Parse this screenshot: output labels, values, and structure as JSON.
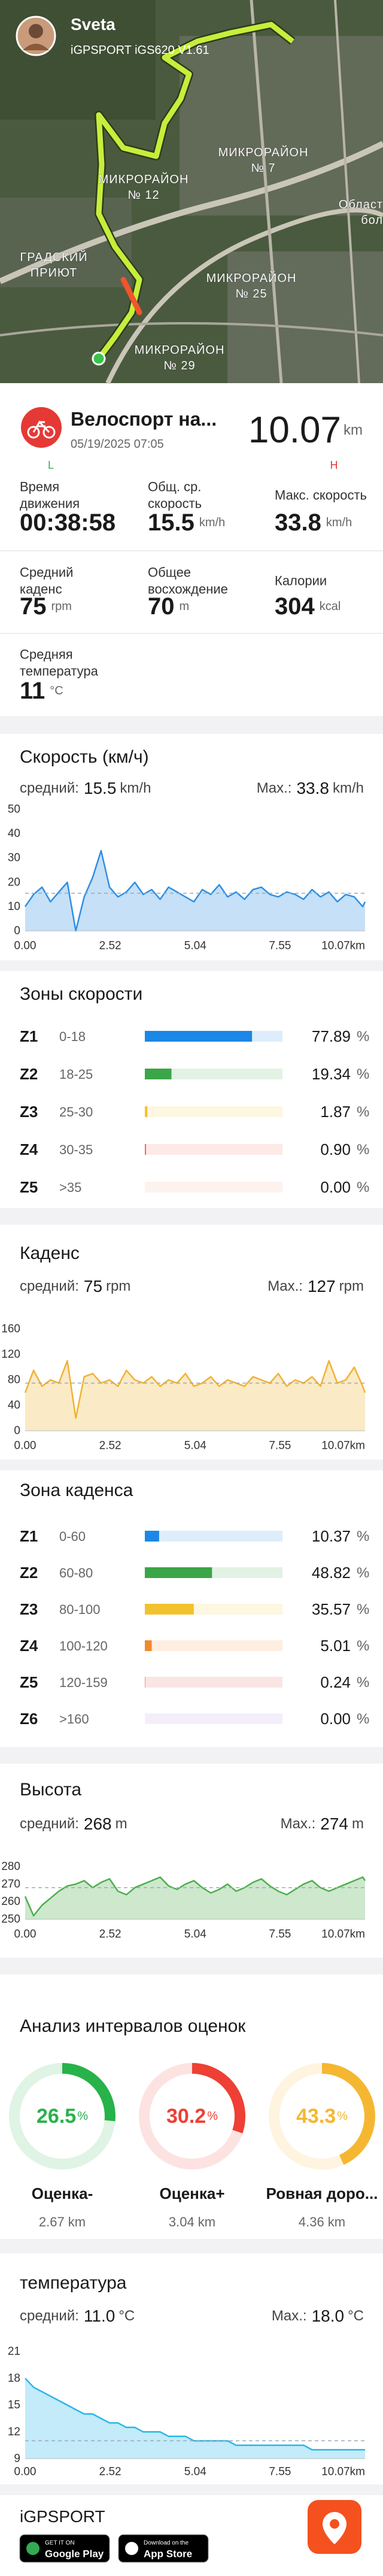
{
  "map": {
    "user": "Sveta",
    "device": "iGPSPORT iGS620 V1.61",
    "labels": [
      [
        "МИКРОРАЙОН",
        "№ 12"
      ],
      [
        "МИКРОРАЙОН",
        "№ 7"
      ],
      [
        "Област",
        "бол"
      ],
      [
        "ГРАДСКИЙ",
        "ПРИЮТ"
      ],
      [
        "МИКРОРАЙОН",
        "№ 25"
      ],
      [
        "МИКРОРАЙОН",
        "№ 29"
      ]
    ]
  },
  "activity": {
    "title": "Велоспорт на...",
    "date": "05/19/2025 07:05",
    "distance": "10.07",
    "distance_unit": "km",
    "scale_low": "L",
    "scale_high": "H"
  },
  "stats": [
    {
      "label": [
        "Время",
        "движения"
      ],
      "value": "00:38:58"
    },
    {
      "label": [
        "Общ. ср.",
        "скорость"
      ],
      "value": "15.5",
      "unit": "km/h"
    },
    {
      "label": [
        "Макс. скорость"
      ],
      "value": "33.8",
      "unit": "km/h"
    },
    {
      "label": [
        "Средний",
        "каденс"
      ],
      "value": "75",
      "unit": "rpm"
    },
    {
      "label": [
        "Общее",
        "восхождение"
      ],
      "value": "70",
      "unit": "m"
    },
    {
      "label": [
        "Калории"
      ],
      "value": "304",
      "unit": "kcal"
    },
    {
      "label": [
        "Средняя",
        "температура"
      ],
      "value": "11",
      "unit": "°C"
    }
  ],
  "chart_data": [
    {
      "type": "line",
      "title": "Скорость (км/ч)",
      "avg_text": "средний:",
      "avg": 15.5,
      "max_text": "Max.:",
      "max": 33.8,
      "unit": "km/h",
      "color": "#2f8fe3",
      "x": [
        0,
        0.25,
        0.5,
        0.75,
        1,
        1.25,
        1.5,
        1.75,
        2,
        2.25,
        2.5,
        2.75,
        3,
        3.25,
        3.5,
        3.75,
        4,
        4.25,
        4.5,
        4.75,
        5,
        5.25,
        5.5,
        5.75,
        6,
        6.25,
        6.5,
        6.75,
        7,
        7.25,
        7.5,
        7.75,
        8,
        8.25,
        8.5,
        8.75,
        9,
        9.25,
        9.5,
        9.75,
        10,
        10.07
      ],
      "values": [
        10,
        15,
        18,
        12,
        16,
        20,
        0,
        14,
        22,
        33,
        18,
        14,
        16,
        20,
        15,
        17,
        13,
        18,
        16,
        14,
        12,
        17,
        15,
        19,
        14,
        16,
        13,
        17,
        18,
        15,
        14,
        16,
        15,
        13,
        17,
        14,
        16,
        12,
        15,
        14,
        10,
        12
      ],
      "xlim": [
        0,
        10.07
      ],
      "xticks": [
        {
          "value": 0,
          "label": "0.00"
        },
        2.52,
        5.04,
        7.55,
        {
          "value": 10.07,
          "label": "10.07km"
        }
      ],
      "ylim": [
        0,
        50
      ],
      "yticks": [
        0,
        10,
        20,
        30,
        40,
        50
      ],
      "grid": false
    },
    {
      "type": "line",
      "title": "Каденс",
      "avg_text": "средний:",
      "avg": 75,
      "max_text": "Max.:",
      "max": 127,
      "unit": "rpm",
      "color": "#f0b232",
      "x": [
        0,
        0.25,
        0.5,
        0.75,
        1,
        1.25,
        1.5,
        1.75,
        2,
        2.25,
        2.5,
        2.75,
        3,
        3.25,
        3.5,
        3.75,
        4,
        4.25,
        4.5,
        4.75,
        5,
        5.25,
        5.5,
        5.75,
        6,
        6.25,
        6.5,
        6.75,
        7,
        7.25,
        7.5,
        7.75,
        8,
        8.25,
        8.5,
        8.75,
        9,
        9.25,
        9.5,
        9.75,
        10,
        10.07
      ],
      "values": [
        60,
        95,
        70,
        80,
        75,
        110,
        20,
        85,
        90,
        75,
        80,
        70,
        95,
        80,
        75,
        85,
        70,
        80,
        75,
        90,
        70,
        75,
        85,
        70,
        80,
        75,
        70,
        85,
        80,
        75,
        90,
        70,
        80,
        75,
        85,
        70,
        110,
        75,
        80,
        100,
        70,
        60
      ],
      "xlim": [
        0,
        10.07
      ],
      "xticks": [
        {
          "value": 0,
          "label": "0.00"
        },
        2.52,
        5.04,
        7.55,
        {
          "value": 10.07,
          "label": "10.07km"
        }
      ],
      "ylim": [
        0,
        160
      ],
      "yticks": [
        0,
        40,
        80,
        120,
        160
      ],
      "grid": false
    },
    {
      "type": "line",
      "title": "Высота",
      "avg_text": "средний:",
      "avg": 268,
      "max_text": "Max.:",
      "max": 274,
      "unit": "m",
      "color": "#4cae4c",
      "x": [
        0,
        0.25,
        0.5,
        0.75,
        1,
        1.25,
        1.5,
        1.75,
        2,
        2.25,
        2.5,
        2.75,
        3,
        3.25,
        3.5,
        3.75,
        4,
        4.25,
        4.5,
        4.75,
        5,
        5.25,
        5.5,
        5.75,
        6,
        6.25,
        6.5,
        6.75,
        7,
        7.25,
        7.5,
        7.75,
        8,
        8.25,
        8.5,
        8.75,
        9,
        9.25,
        9.5,
        9.75,
        10,
        10.07
      ],
      "values": [
        263,
        252,
        258,
        262,
        266,
        269,
        270,
        272,
        268,
        271,
        273,
        266,
        264,
        268,
        270,
        272,
        274,
        269,
        267,
        270,
        272,
        268,
        265,
        267,
        270,
        266,
        268,
        271,
        273,
        269,
        266,
        264,
        267,
        270,
        272,
        268,
        266,
        268,
        270,
        272,
        274,
        272
      ],
      "xlim": [
        0,
        10.07
      ],
      "xticks": [
        {
          "value": 0,
          "label": "0.00"
        },
        2.52,
        5.04,
        7.55,
        {
          "value": 10.07,
          "label": "10.07km"
        }
      ],
      "ylim": [
        250,
        280
      ],
      "yticks": [
        250,
        260,
        270,
        280
      ],
      "grid": false
    },
    {
      "type": "line",
      "title": "температура",
      "avg_text": "средний:",
      "avg": 11,
      "avg_label": "11.0",
      "max_text": "Max.:",
      "max": 18,
      "max_label": "18.0",
      "unit": "°C",
      "color": "#29b6e8",
      "x": [
        0,
        0.25,
        0.5,
        0.75,
        1,
        1.25,
        1.5,
        1.75,
        2,
        2.25,
        2.5,
        2.75,
        3,
        3.25,
        3.5,
        3.75,
        4,
        4.25,
        4.5,
        4.75,
        5,
        5.25,
        5.5,
        5.75,
        6,
        6.25,
        6.5,
        6.75,
        7,
        7.25,
        7.5,
        7.75,
        8,
        8.25,
        8.5,
        8.75,
        9,
        9.25,
        9.5,
        9.75,
        10,
        10.07
      ],
      "values": [
        18,
        17,
        16.5,
        16,
        15.5,
        15,
        14.5,
        14,
        14,
        13.5,
        13,
        13,
        12.5,
        12.5,
        12,
        12,
        12,
        11.5,
        11.5,
        11.5,
        11,
        11,
        11,
        11,
        11,
        10.5,
        10.5,
        10.5,
        10.5,
        10.5,
        10.5,
        10.5,
        10.5,
        10.5,
        10,
        10,
        10,
        10,
        10,
        10,
        10,
        10
      ],
      "xlim": [
        0,
        10.07
      ],
      "xticks": [
        {
          "value": 0,
          "label": "0.00"
        },
        2.52,
        5.04,
        7.55,
        {
          "value": 10.07,
          "label": "10.07km"
        }
      ],
      "ylim": [
        9,
        21
      ],
      "yticks": [
        9,
        12,
        15,
        18,
        21
      ],
      "grid": false
    }
  ],
  "speed_zones": {
    "title": "Зоны скорости",
    "unit": "%",
    "zones": [
      {
        "name": "Z1",
        "range": "0-18",
        "value": 77.89,
        "color": "#1b87e6"
      },
      {
        "name": "Z2",
        "range": "18-25",
        "value": 19.34,
        "color": "#3aa647"
      },
      {
        "name": "Z3",
        "range": "25-30",
        "value": 1.87,
        "color": "#f2c12e"
      },
      {
        "name": "Z4",
        "range": "30-35",
        "value": 0.9,
        "label": "0.90",
        "color": "#ef6c5a"
      },
      {
        "name": "Z5",
        "range": ">35",
        "value": 0,
        "label": "0.00",
        "color": "#f3a98a"
      }
    ]
  },
  "cadence_zones": {
    "title": "Зона каденса",
    "unit": "%",
    "zones": [
      {
        "name": "Z1",
        "range": "0-60",
        "value": 10.37,
        "color": "#1b87e6"
      },
      {
        "name": "Z2",
        "range": "60-80",
        "value": 48.82,
        "color": "#3aa647"
      },
      {
        "name": "Z3",
        "range": "80-100",
        "value": 35.57,
        "color": "#f2c12e"
      },
      {
        "name": "Z4",
        "range": "100-120",
        "value": 5.01,
        "color": "#f08a2e"
      },
      {
        "name": "Z5",
        "range": "120-159",
        "value": 0.24,
        "color": "#e5484d"
      },
      {
        "name": "Z6",
        "range": ">160",
        "value": 0,
        "label": "0.00",
        "color": "#b58ce6"
      }
    ]
  },
  "grade_analysis": {
    "title": "Анализ интервалов оценок",
    "unit": "%",
    "items": [
      {
        "value": 26.5,
        "name": "Оценка-",
        "distance": "2.67 km",
        "color": "#27b24a"
      },
      {
        "value": 30.2,
        "name": "Оценка+",
        "distance": "3.04 km",
        "color": "#ee4035"
      },
      {
        "value": 43.3,
        "name": "Ровная доро...",
        "distance": "4.36 km",
        "color": "#f5b731"
      }
    ]
  },
  "footer": {
    "brand": "iGPSPORT",
    "badges": [
      [
        "GET IT ON",
        "Google Play"
      ],
      [
        "Download on the",
        "App Store"
      ]
    ]
  }
}
